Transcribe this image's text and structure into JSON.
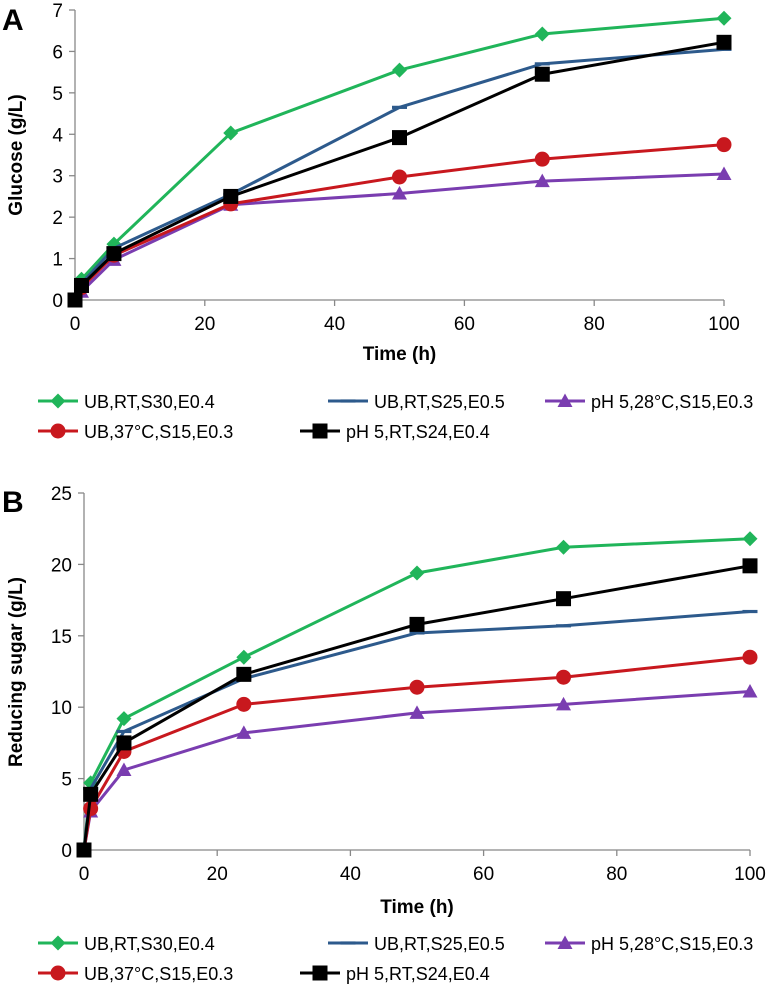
{
  "chart_data": [
    {
      "panel_label": "A",
      "type": "line",
      "title": "",
      "xlabel": "Time (h)",
      "ylabel": "Glucose (g/L)",
      "xlim": [
        0,
        100
      ],
      "ylim": [
        0,
        7
      ],
      "xticks": [
        0,
        20,
        40,
        60,
        80,
        100
      ],
      "yticks": [
        0,
        1,
        2,
        3,
        4,
        5,
        6,
        7
      ],
      "grid": false,
      "legend_position": "bottom",
      "x": [
        0,
        1,
        6,
        24,
        50,
        72,
        100
      ],
      "series": [
        {
          "name": "UB,RT,S30,E0.4",
          "color": "#20B55A",
          "marker": "diamond",
          "values": [
            0,
            0.5,
            1.35,
            4.03,
            5.55,
            6.42,
            6.8
          ]
        },
        {
          "name": "UB,RT,S25,E0.5",
          "color": "#2D5A8C",
          "marker": "dash",
          "values": [
            0,
            0.4,
            1.25,
            2.55,
            4.65,
            5.7,
            6.05
          ]
        },
        {
          "name": "pH 5,28°C,S15,E0.3",
          "color": "#7A3DB0",
          "marker": "triangle",
          "values": [
            0,
            0.2,
            0.97,
            2.3,
            2.57,
            2.87,
            3.04
          ]
        },
        {
          "name": "UB,37°C,S15,E0.3",
          "color": "#C8181E",
          "marker": "circle",
          "values": [
            0,
            0.3,
            1.08,
            2.32,
            2.97,
            3.4,
            3.75
          ]
        },
        {
          "name": "pH 5,RT,S24,E0.4",
          "color": "#000000",
          "marker": "square",
          "values": [
            0,
            0.35,
            1.12,
            2.5,
            3.92,
            5.45,
            6.22
          ]
        }
      ]
    },
    {
      "panel_label": "B",
      "type": "line",
      "title": "",
      "xlabel": "Time (h)",
      "ylabel": "Reducing sugar (g/L)",
      "xlim": [
        0,
        100
      ],
      "ylim": [
        0,
        25
      ],
      "xticks": [
        0,
        20,
        40,
        60,
        80,
        100
      ],
      "yticks": [
        0,
        5,
        10,
        15,
        20,
        25
      ],
      "grid": false,
      "legend_position": "bottom",
      "x": [
        0,
        1,
        6,
        24,
        50,
        72,
        100
      ],
      "series": [
        {
          "name": "UB,RT,S30,E0.4",
          "color": "#20B55A",
          "marker": "diamond",
          "values": [
            0,
            4.7,
            9.2,
            13.5,
            19.4,
            21.2,
            21.8
          ]
        },
        {
          "name": "UB,RT,S25,E0.5",
          "color": "#2D5A8C",
          "marker": "dash",
          "values": [
            0,
            4.3,
            8.3,
            12.0,
            15.2,
            15.7,
            16.7
          ]
        },
        {
          "name": "pH 5,28°C,S15,E0.3",
          "color": "#7A3DB0",
          "marker": "triangle",
          "values": [
            0,
            2.7,
            5.6,
            8.2,
            9.6,
            10.2,
            11.1
          ]
        },
        {
          "name": "UB,37°C,S15,E0.3",
          "color": "#C8181E",
          "marker": "circle",
          "values": [
            0,
            2.9,
            6.9,
            10.2,
            11.4,
            12.1,
            13.5
          ]
        },
        {
          "name": "pH 5,RT,S24,E0.4",
          "color": "#000000",
          "marker": "square",
          "values": [
            0,
            3.9,
            7.5,
            12.3,
            15.8,
            17.6,
            19.9
          ]
        }
      ]
    }
  ]
}
